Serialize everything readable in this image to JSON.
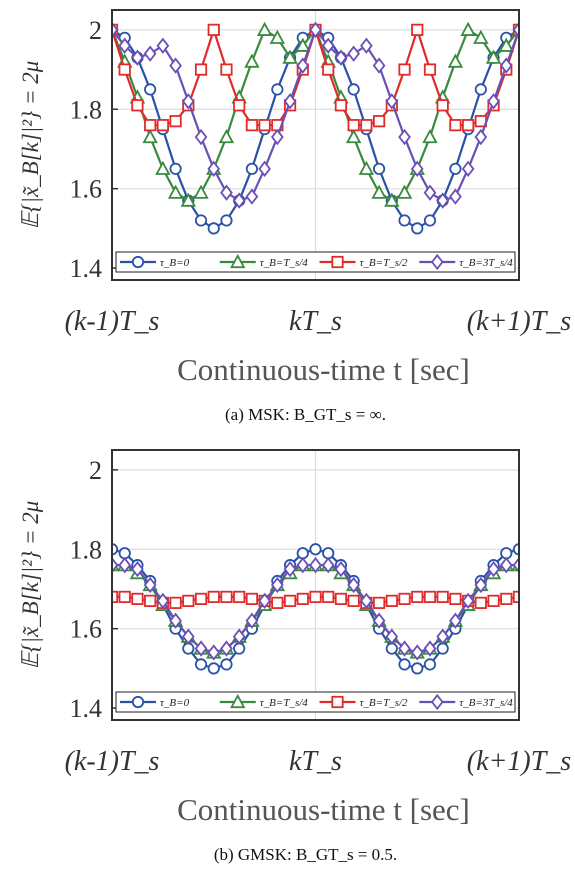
{
  "chart_data": [
    {
      "type": "line",
      "caption": "(a) MSK: B_GT_s = ∞.",
      "ylabel": "𝔼{|x̃_B[k]|²} = 2μ",
      "xlabel": "Continuous-time t [sec]",
      "xtick_labels": [
        "(k-1)T_s",
        "kT_s",
        "(k+1)T_s"
      ],
      "ytick_labels": [
        "1.4",
        "1.6",
        "1.8",
        "2"
      ],
      "ylim": [
        1.37,
        2.05
      ],
      "xlim": [
        0,
        2
      ],
      "grid": true,
      "legend_placement": "bottom",
      "x": [
        0,
        0.0625,
        0.125,
        0.1875,
        0.25,
        0.3125,
        0.375,
        0.4375,
        0.5,
        0.5625,
        0.625,
        0.6875,
        0.75,
        0.8125,
        0.875,
        0.9375,
        1.0,
        1.0625,
        1.125,
        1.1875,
        1.25,
        1.3125,
        1.375,
        1.4375,
        1.5,
        1.5625,
        1.625,
        1.6875,
        1.75,
        1.8125,
        1.875,
        1.9375,
        2.0
      ],
      "series": [
        {
          "name": "τ_B=0",
          "color": "#2a52a6",
          "marker": "circle",
          "values": [
            2.0,
            1.98,
            1.93,
            1.85,
            1.75,
            1.65,
            1.57,
            1.52,
            1.5,
            1.52,
            1.57,
            1.65,
            1.75,
            1.85,
            1.93,
            1.98,
            2.0,
            1.98,
            1.93,
            1.85,
            1.75,
            1.65,
            1.57,
            1.52,
            1.5,
            1.52,
            1.57,
            1.65,
            1.75,
            1.85,
            1.93,
            1.98,
            2.0
          ]
        },
        {
          "name": "τ_B=T_s/4",
          "color": "#3a8a3e",
          "marker": "triangle",
          "values": [
            2.0,
            1.92,
            1.83,
            1.73,
            1.65,
            1.59,
            1.57,
            1.59,
            1.65,
            1.73,
            1.83,
            1.92,
            2.0,
            1.98,
            1.93,
            1.96,
            2.0,
            1.92,
            1.83,
            1.73,
            1.65,
            1.59,
            1.57,
            1.59,
            1.65,
            1.73,
            1.83,
            1.92,
            2.0,
            1.98,
            1.93,
            1.96,
            2.0
          ]
        },
        {
          "name": "τ_B=T_s/2",
          "color": "#e02b2b",
          "marker": "square",
          "values": [
            2.0,
            1.9,
            1.81,
            1.76,
            1.76,
            1.77,
            1.81,
            1.9,
            2.0,
            1.9,
            1.81,
            1.76,
            1.76,
            1.76,
            1.81,
            1.9,
            2.0,
            1.9,
            1.81,
            1.76,
            1.76,
            1.77,
            1.81,
            1.9,
            2.0,
            1.9,
            1.81,
            1.76,
            1.76,
            1.77,
            1.81,
            1.9,
            2.0
          ]
        },
        {
          "name": "τ_B=3T_s/4",
          "color": "#6a4fb5",
          "marker": "diamond",
          "values": [
            2.0,
            1.96,
            1.93,
            1.94,
            1.96,
            1.91,
            1.82,
            1.73,
            1.65,
            1.59,
            1.57,
            1.58,
            1.65,
            1.73,
            1.82,
            1.91,
            2.0,
            1.96,
            1.93,
            1.94,
            1.96,
            1.91,
            1.82,
            1.73,
            1.65,
            1.59,
            1.57,
            1.58,
            1.65,
            1.73,
            1.82,
            1.91,
            2.0
          ]
        }
      ]
    },
    {
      "type": "line",
      "caption": "(b) GMSK: B_GT_s = 0.5.",
      "ylabel": "𝔼{|x̃_B[k]|²} = 2μ",
      "xlabel": "Continuous-time t [sec]",
      "xtick_labels": [
        "(k-1)T_s",
        "kT_s",
        "(k+1)T_s"
      ],
      "ytick_labels": [
        "1.4",
        "1.6",
        "1.8",
        "2"
      ],
      "ylim": [
        1.37,
        2.05
      ],
      "xlim": [
        0,
        2
      ],
      "grid": true,
      "legend_placement": "bottom",
      "x": [
        0,
        0.0625,
        0.125,
        0.1875,
        0.25,
        0.3125,
        0.375,
        0.4375,
        0.5,
        0.5625,
        0.625,
        0.6875,
        0.75,
        0.8125,
        0.875,
        0.9375,
        1.0,
        1.0625,
        1.125,
        1.1875,
        1.25,
        1.3125,
        1.375,
        1.4375,
        1.5,
        1.5625,
        1.625,
        1.6875,
        1.75,
        1.8125,
        1.875,
        1.9375,
        2.0
      ],
      "series": [
        {
          "name": "τ_B=0",
          "color": "#2a52a6",
          "marker": "circle",
          "values": [
            1.8,
            1.79,
            1.76,
            1.72,
            1.66,
            1.6,
            1.55,
            1.51,
            1.5,
            1.51,
            1.55,
            1.6,
            1.66,
            1.72,
            1.76,
            1.79,
            1.8,
            1.79,
            1.76,
            1.72,
            1.66,
            1.6,
            1.55,
            1.51,
            1.5,
            1.51,
            1.55,
            1.6,
            1.66,
            1.72,
            1.76,
            1.79,
            1.8
          ]
        },
        {
          "name": "τ_B=T_s/4",
          "color": "#3a8a3e",
          "marker": "triangle",
          "values": [
            1.76,
            1.76,
            1.74,
            1.71,
            1.66,
            1.62,
            1.58,
            1.55,
            1.54,
            1.55,
            1.58,
            1.62,
            1.66,
            1.71,
            1.74,
            1.76,
            1.76,
            1.76,
            1.74,
            1.71,
            1.66,
            1.62,
            1.58,
            1.55,
            1.54,
            1.55,
            1.58,
            1.62,
            1.66,
            1.71,
            1.74,
            1.76,
            1.76
          ]
        },
        {
          "name": "τ_B=T_s/2",
          "color": "#e02b2b",
          "marker": "square",
          "values": [
            1.68,
            1.68,
            1.675,
            1.67,
            1.665,
            1.665,
            1.67,
            1.675,
            1.68,
            1.68,
            1.68,
            1.675,
            1.67,
            1.665,
            1.67,
            1.675,
            1.68,
            1.68,
            1.675,
            1.67,
            1.665,
            1.665,
            1.67,
            1.675,
            1.68,
            1.68,
            1.68,
            1.675,
            1.67,
            1.665,
            1.67,
            1.675,
            1.68
          ]
        },
        {
          "name": "τ_B=3T_s/4",
          "color": "#6a4fb5",
          "marker": "diamond",
          "values": [
            1.76,
            1.76,
            1.75,
            1.71,
            1.67,
            1.62,
            1.58,
            1.55,
            1.54,
            1.55,
            1.58,
            1.62,
            1.67,
            1.71,
            1.75,
            1.76,
            1.76,
            1.76,
            1.75,
            1.71,
            1.67,
            1.62,
            1.58,
            1.55,
            1.54,
            1.55,
            1.58,
            1.62,
            1.67,
            1.71,
            1.75,
            1.76,
            1.76
          ]
        }
      ]
    }
  ]
}
